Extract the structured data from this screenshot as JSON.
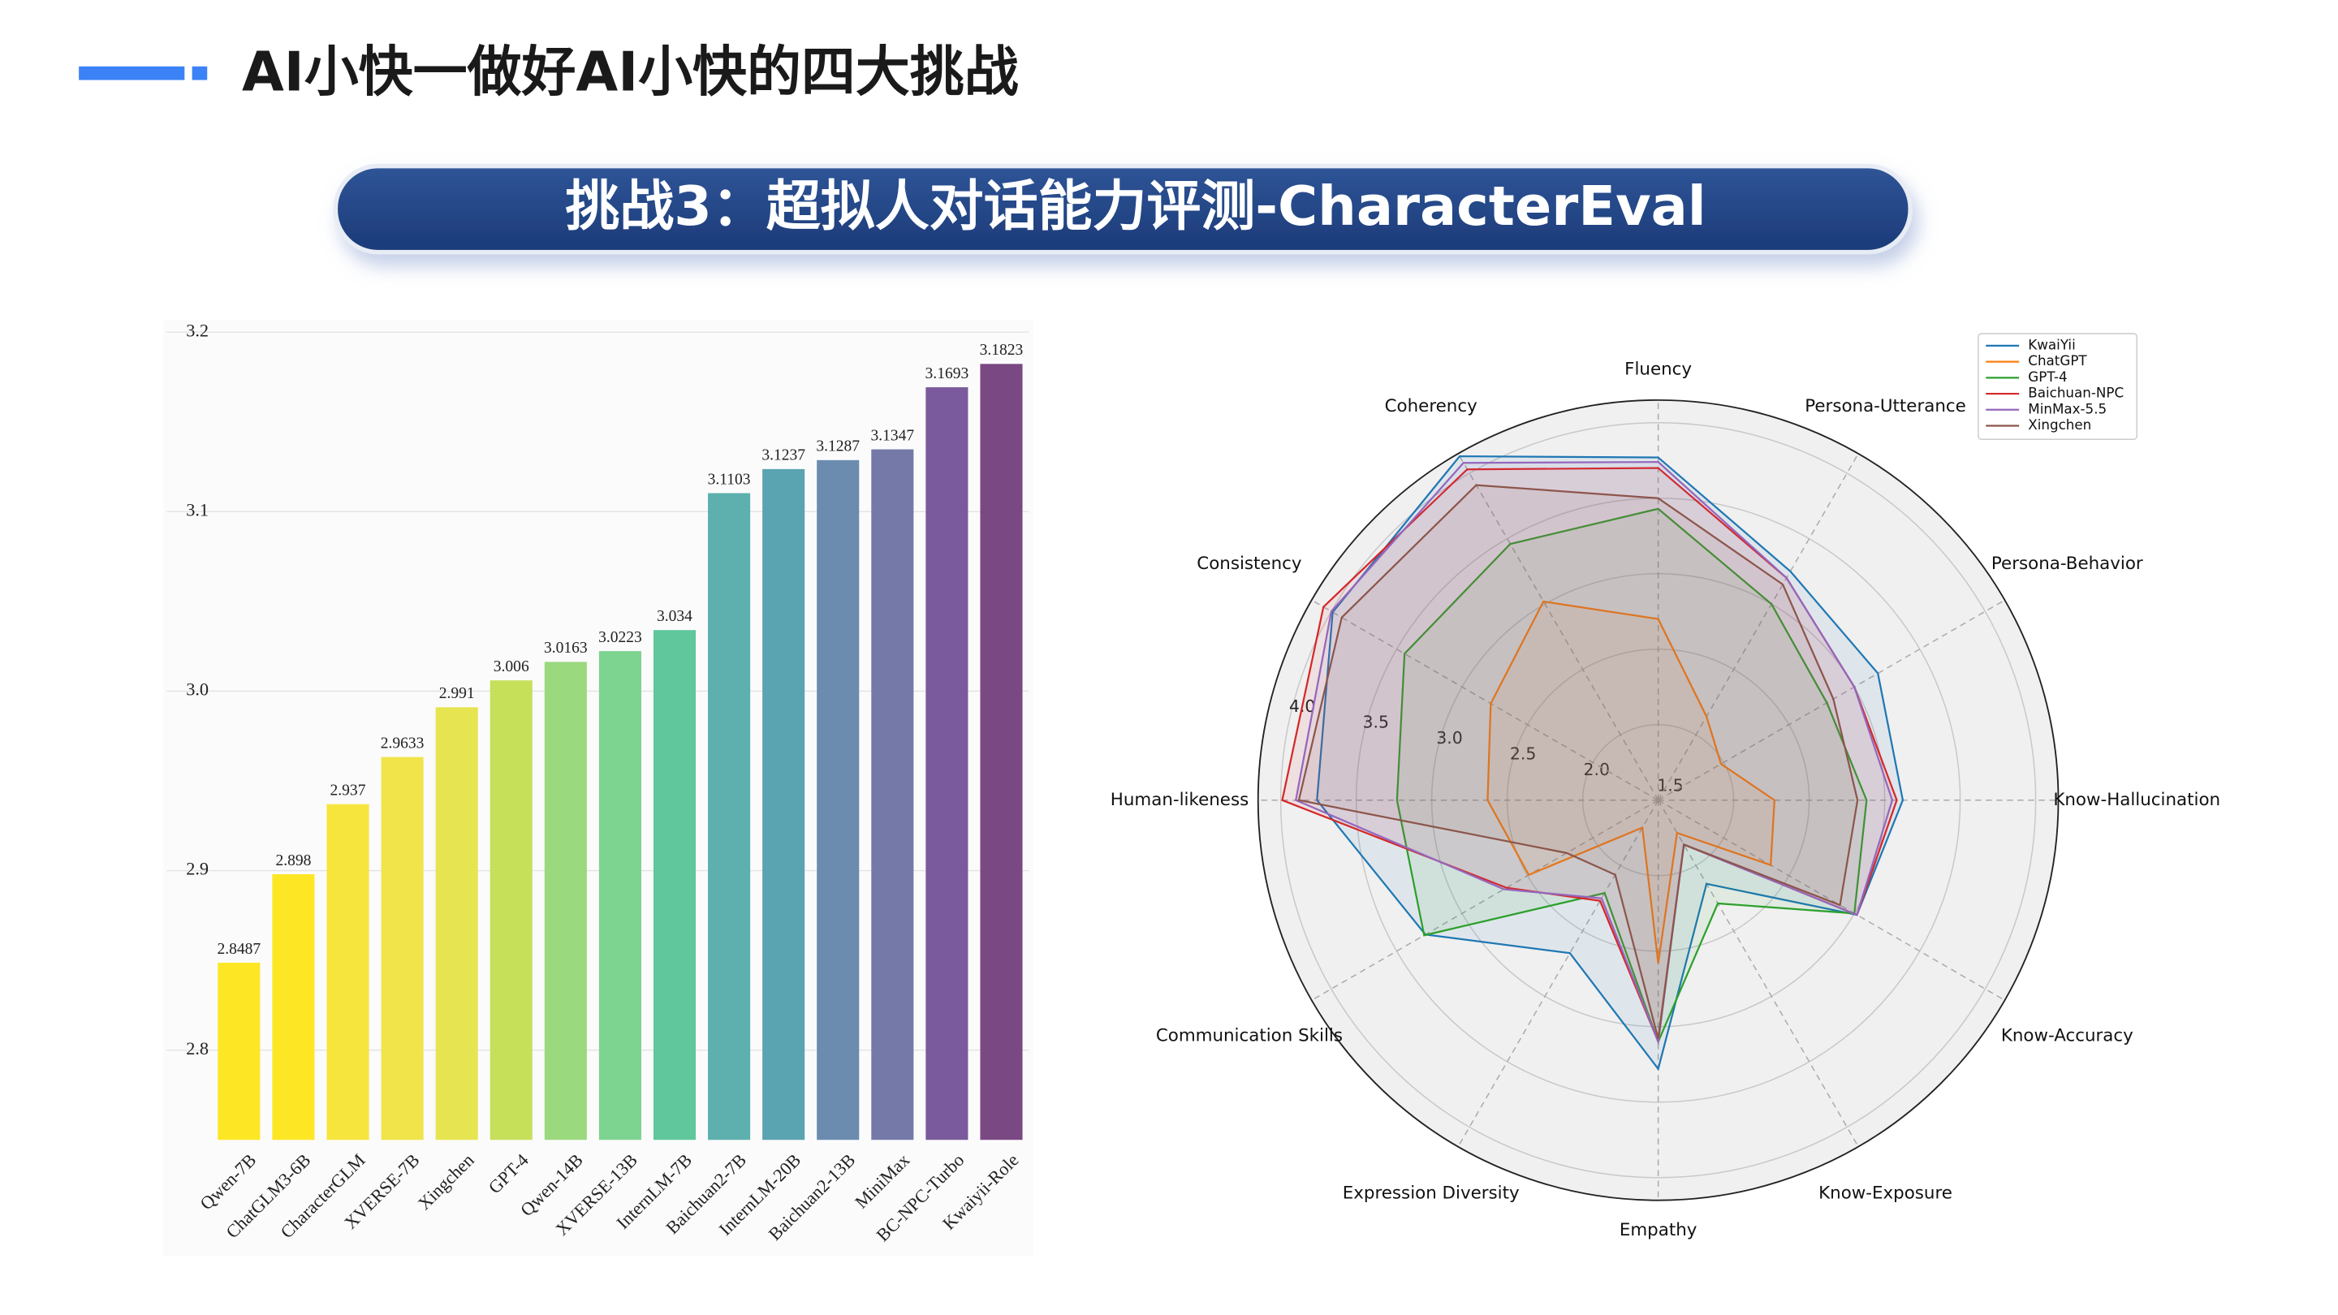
{
  "header": {
    "title": "AI小快一做好AI小快的四大挑战",
    "banner": "挑战3：超拟人对话能力评测-CharacterEval"
  },
  "chart_data": [
    {
      "type": "bar",
      "categories": [
        "Qwen-7B",
        "ChatGLM3-6B",
        "CharacterGLM",
        "XVERSE-7B",
        "Xingchen",
        "GPT-4",
        "Qwen-14B",
        "XVERSE-13B",
        "InternLM-7B",
        "Baichuan2-7B",
        "InternLM-20B",
        "Baichuan2-13B",
        "MiniMax",
        "BC-NPC-Turbo",
        "Kwaiyii-Role"
      ],
      "values": [
        2.8487,
        2.898,
        2.937,
        2.9633,
        2.991,
        3.006,
        3.0163,
        3.0223,
        3.034,
        3.1103,
        3.1237,
        3.1287,
        3.1347,
        3.1693,
        3.1823
      ],
      "colors": [
        "#fde725",
        "#fde725",
        "#f6e53d",
        "#f0e44a",
        "#e6e450",
        "#c6e05a",
        "#9ad97e",
        "#7dd390",
        "#5fc79b",
        "#5db0ad",
        "#5aa3b0",
        "#6b8caf",
        "#7479a8",
        "#7a5a9c",
        "#7a4883"
      ],
      "ylim": [
        2.75,
        3.2
      ],
      "yticks": [
        2.8,
        2.9,
        {
          "value": 3,
          "label": "3.0"
        },
        3.1,
        3.2
      ],
      "grid": true
    },
    {
      "type": "radar",
      "categories": [
        "Fluency",
        "Persona-Utterance",
        "Persona-Behavior",
        "Know-Hallucination",
        "Know-Accuracy",
        "Know-Exposure",
        "Empathy",
        "Expression Diversity",
        "Communication Skills",
        "Human-likeness",
        "Consistency",
        "Coherency"
      ],
      "rlim": [
        1.5,
        4.15
      ],
      "rticks": [
        1.5,
        {
          "value": 2,
          "label": "2.0"
        },
        2.5,
        {
          "value": 3,
          "label": "3.0"
        },
        3.5,
        {
          "value": 4,
          "label": "4.0"
        }
      ],
      "legend": "upper right",
      "series": [
        {
          "name": "KwaiYii",
          "color": "#1f77b4",
          "values": [
            3.77,
            3.25,
            3.18,
            3.12,
            3.02,
            2.14,
            3.28,
            2.67,
            3.28,
            3.76,
            3.99,
            4.13
          ]
        },
        {
          "name": "ChatGPT",
          "color": "#ff7f0e",
          "values": [
            2.7,
            2.14,
            1.98,
            2.27,
            2.36,
            1.75,
            2.58,
            1.71,
            2.49,
            2.63,
            2.78,
            3.02
          ]
        },
        {
          "name": "GPT-4",
          "color": "#2ca02c",
          "values": [
            3.43,
            3.0,
            2.79,
            2.88,
            3.0,
            2.29,
            3.1,
            2.21,
            3.29,
            3.23,
            3.44,
            3.46
          ]
        },
        {
          "name": "Baichuan-NPC",
          "color": "#d62728",
          "values": [
            3.7,
            3.2,
            3.0,
            3.08,
            3.02,
            1.84,
            3.1,
            2.27,
            2.66,
            3.99,
            4.06,
            4.03
          ]
        },
        {
          "name": "MinMax-5.5",
          "color": "#9467bd",
          "values": [
            3.74,
            3.2,
            3.0,
            3.05,
            3.02,
            1.84,
            3.1,
            2.25,
            2.68,
            3.9,
            4.0,
            4.08
          ]
        },
        {
          "name": "Xingchen",
          "color": "#8c564b",
          "values": [
            3.5,
            3.15,
            2.84,
            2.82,
            2.89,
            1.84,
            3.08,
            2.07,
            2.2,
            3.88,
            3.92,
            3.91
          ]
        }
      ]
    }
  ]
}
